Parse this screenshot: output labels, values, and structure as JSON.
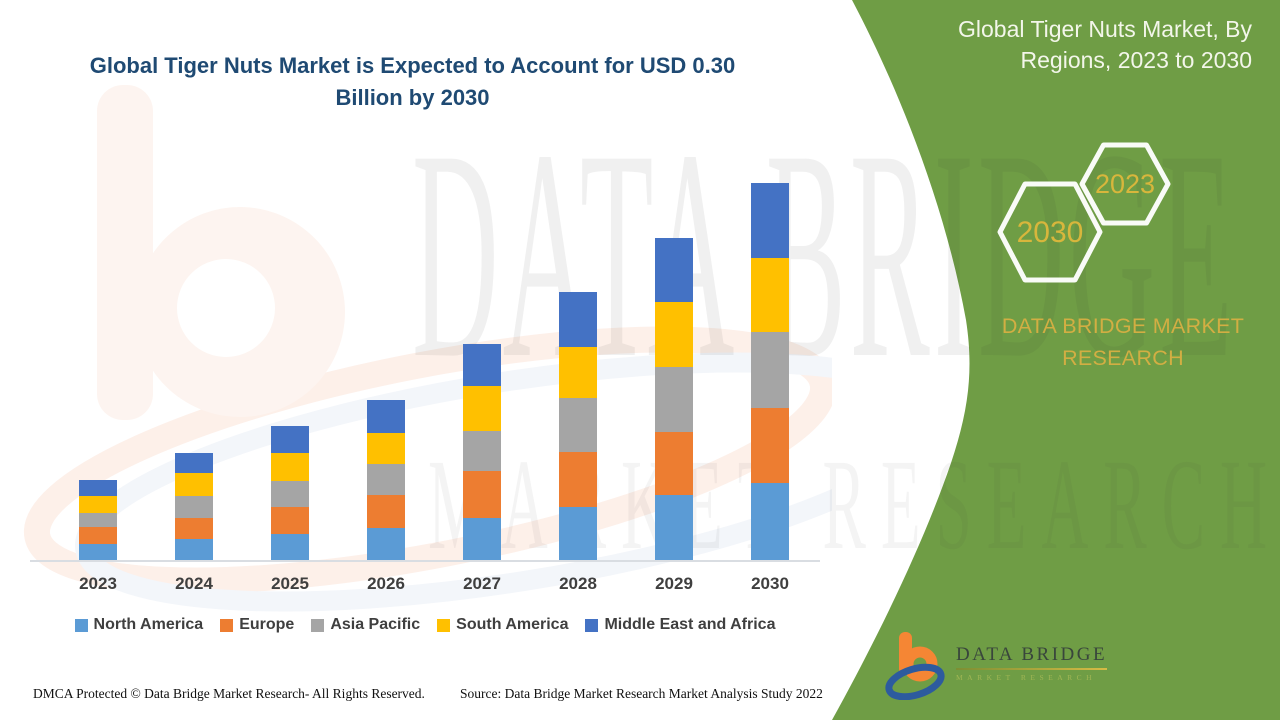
{
  "main_title": {
    "line1": "Global Tiger Nuts Market is Expected to Account for USD 0.30",
    "line2": "Billion by 2030"
  },
  "side_panel": {
    "title_line1": "Global Tiger Nuts Market, By",
    "title_line2": "Regions, 2023 to 2030",
    "hexagon_back_label": "2023",
    "hexagon_front_label": "2030",
    "brand_line1": "DATA BRIDGE MARKET",
    "brand_line2": "RESEARCH",
    "panel_color": "#6f9d45"
  },
  "watermark": {
    "line1": "DATA BRIDGE",
    "line2": "MARKET RESEARCH"
  },
  "logo": {
    "name_text": "DATA BRIDGE",
    "tagline_text": "MARKET RESEARCH"
  },
  "footer": {
    "dmca": "DMCA Protected © Data Bridge Market Research- All Rights Reserved.",
    "source": "Source: Data Bridge Market Research Market Analysis Study 2022"
  },
  "colors": {
    "title_blue": "#1f4a73",
    "green_panel": "#6f9d45",
    "gold": "#d2ae43",
    "axis_line": "#d9dde2",
    "label_gray": "#3f3f3f"
  },
  "chart_data": {
    "type": "bar",
    "stacked": true,
    "title": "Global Tiger Nuts Market is Expected to Account for USD 0.30 Billion by 2030",
    "subtitle": "Global Tiger Nuts Market, By Regions, 2023 to 2030",
    "categories": [
      "2023",
      "2024",
      "2025",
      "2026",
      "2027",
      "2028",
      "2029",
      "2030"
    ],
    "unit": "USD million (estimated from bar heights; no value axis shown)",
    "series": [
      {
        "name": "North America",
        "color": "#5b9bd5",
        "values": [
          12.7,
          16.7,
          20.7,
          25.5,
          33.4,
          42.2,
          51.7,
          61.3
        ]
      },
      {
        "name": "Europe",
        "color": "#ed7d31",
        "values": [
          13.5,
          16.7,
          21.5,
          26.3,
          37.4,
          43.8,
          50.1,
          59.7
        ]
      },
      {
        "name": "Asia Pacific",
        "color": "#a5a5a5",
        "values": [
          11.1,
          17.5,
          20.7,
          24.7,
          31.8,
          43.0,
          51.7,
          60.5
        ]
      },
      {
        "name": "South America",
        "color": "#ffc000",
        "values": [
          13.5,
          18.3,
          22.3,
          24.7,
          35.8,
          40.6,
          51.7,
          58.9
        ]
      },
      {
        "name": "Middle East and Africa",
        "color": "#4472c4",
        "values": [
          12.7,
          15.9,
          21.5,
          26.3,
          33.4,
          43.8,
          50.9,
          59.7
        ]
      }
    ],
    "totals_note": "2030 total corresponds to USD 0.30 Billion per title",
    "legend_position": "bottom",
    "gridlines": false,
    "value_axis_visible": false
  }
}
